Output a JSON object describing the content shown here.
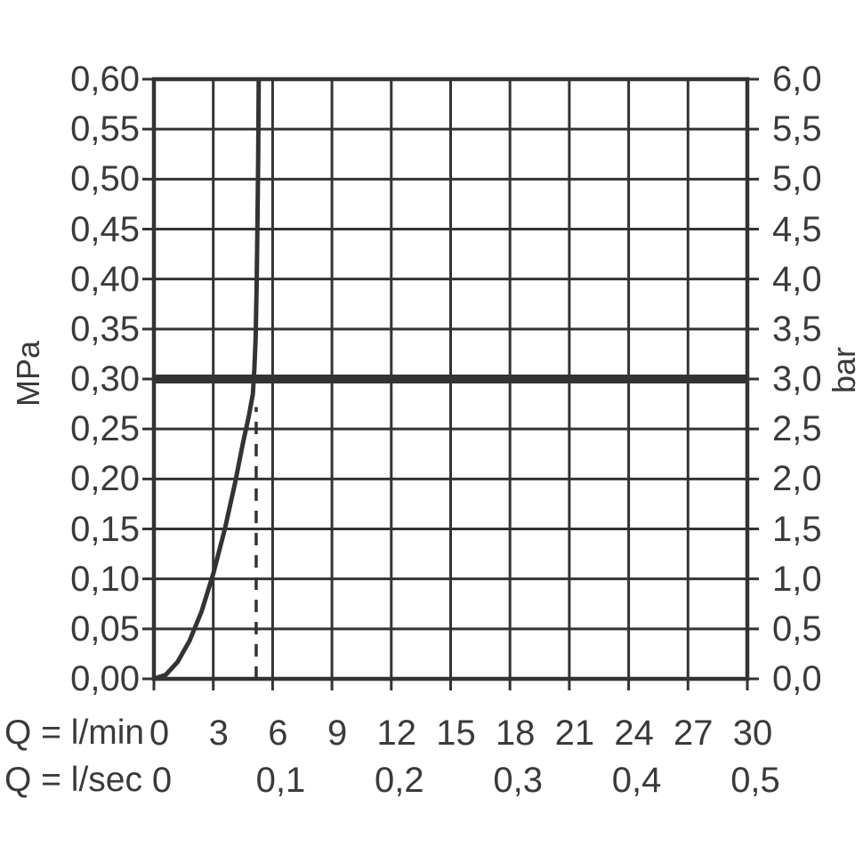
{
  "chart_data": {
    "type": "line",
    "title": "",
    "axes": {
      "y_left": {
        "unit": "MPa",
        "min": 0.0,
        "max": 0.6,
        "step": 0.05,
        "tick_labels": [
          "0,60",
          "0,55",
          "0,50",
          "0,45",
          "0,40",
          "0,35",
          "0,30",
          "0,25",
          "0,20",
          "0,15",
          "0,10",
          "0,05",
          "0,00"
        ]
      },
      "y_right": {
        "unit": "bar",
        "min": 0.0,
        "max": 6.0,
        "step": 0.5,
        "tick_labels": [
          "6,0",
          "5,5",
          "5,0",
          "4,5",
          "4,0",
          "3,5",
          "3,0",
          "2,5",
          "2,0",
          "1,5",
          "1,0",
          "0,5",
          "0,0"
        ]
      },
      "x_lmin": {
        "label": "Q = l/min",
        "min": 0,
        "max": 30,
        "step": 3,
        "tick_labels": [
          "0",
          "3",
          "6",
          "9",
          "12",
          "15",
          "18",
          "21",
          "24",
          "27",
          "30"
        ]
      },
      "x_lsec": {
        "label": "Q = l/sec",
        "ticks": [
          {
            "label": "0",
            "at_lmin": 0
          },
          {
            "label": "0,1",
            "at_lmin": 6
          },
          {
            "label": "0,2",
            "at_lmin": 12
          },
          {
            "label": "0,3",
            "at_lmin": 18
          },
          {
            "label": "0,4",
            "at_lmin": 24
          },
          {
            "label": "0,5",
            "at_lmin": 30
          }
        ]
      }
    },
    "grid": {
      "visible": true,
      "x_step_lmin": 3,
      "y_step_mpa": 0.05
    },
    "series": [
      {
        "name": "flow-pressure-curve",
        "style": "solid",
        "points_lmin_mpa": [
          [
            0,
            0
          ],
          [
            0.6,
            0.004
          ],
          [
            1.2,
            0.017
          ],
          [
            1.8,
            0.038
          ],
          [
            2.4,
            0.067
          ],
          [
            3.0,
            0.105
          ],
          [
            3.6,
            0.151
          ],
          [
            4.1,
            0.196
          ],
          [
            4.5,
            0.236
          ],
          [
            4.8,
            0.263
          ],
          [
            5.0,
            0.285
          ],
          [
            5.08,
            0.31
          ],
          [
            5.14,
            0.34
          ],
          [
            5.19,
            0.39
          ],
          [
            5.23,
            0.45
          ],
          [
            5.27,
            0.52
          ],
          [
            5.3,
            0.6
          ]
        ]
      },
      {
        "name": "pressure-limit-line",
        "style": "thick-horizontal",
        "mpa": 0.3,
        "from_lmin": 0,
        "to_lmin": 30
      },
      {
        "name": "flow-at-3bar-guide",
        "style": "dashed-vertical",
        "lmin": 5.17,
        "from_mpa": 0,
        "to_mpa": 0.272
      }
    ],
    "colors": {
      "line": "#333333",
      "text": "#3a3a3a",
      "background": "#ffffff"
    }
  }
}
